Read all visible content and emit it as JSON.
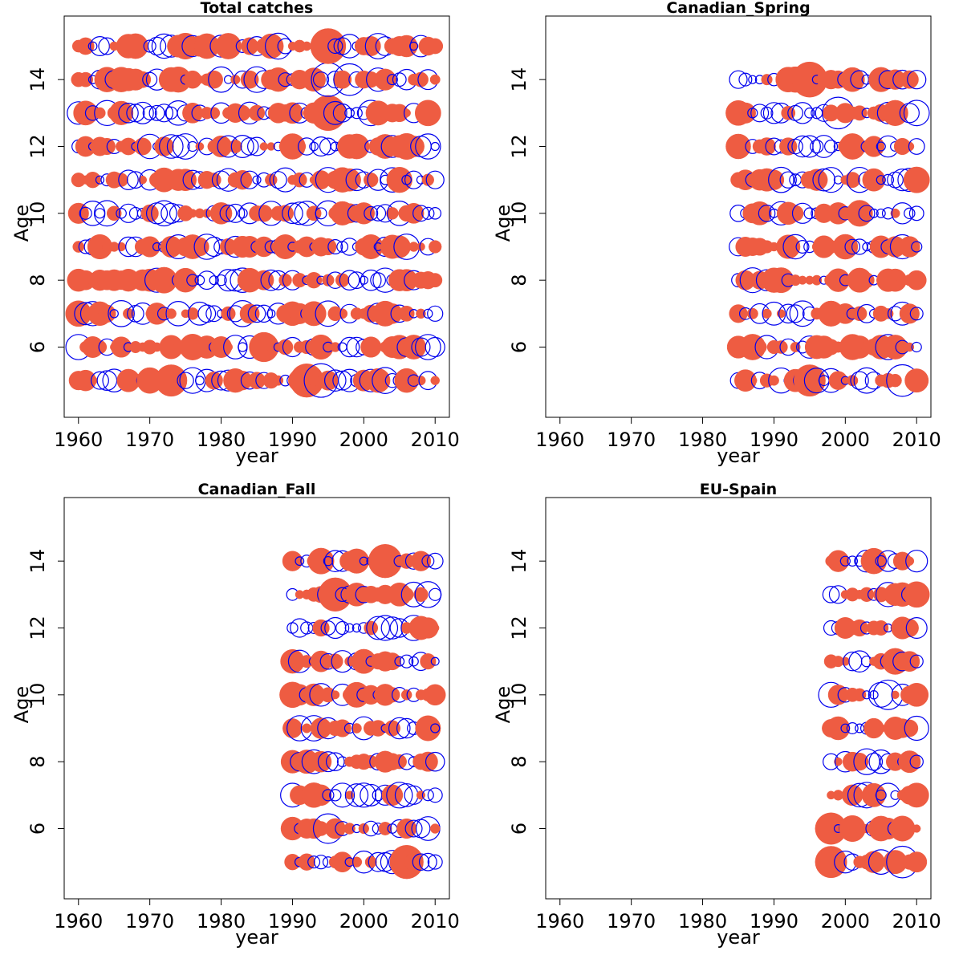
{
  "colors": {
    "positive": "#ee5c42",
    "negative": "#0000ee",
    "frame": "#000000"
  },
  "chart_data": [
    {
      "type": "scatter",
      "title": "Total catches",
      "xlabel": "year",
      "ylabel": "Age",
      "xlim": [
        1958,
        2012
      ],
      "ylim": [
        3.9,
        15.9
      ],
      "x_ticks": [
        "1960",
        "1970",
        "1980",
        "1990",
        "2000",
        "2010"
      ],
      "y_ticks": [
        "6",
        "8",
        "10",
        "12",
        "14"
      ],
      "grid": false,
      "legend": "none",
      "years": [
        1960,
        2010
      ],
      "ages": [
        5,
        15
      ],
      "note": "bubble residuals; filled = positive, open = negative",
      "peaks": [
        {
          "year": 1995,
          "age": 15,
          "value": 1.0
        },
        {
          "year": 1995,
          "age": 13,
          "value": 1.0
        },
        {
          "year": 1995,
          "age": 14,
          "value": -0.9
        },
        {
          "year": 1992,
          "age": 5,
          "value": 0.9
        },
        {
          "year": 1994,
          "age": 5,
          "value": -0.9
        },
        {
          "year": 1973,
          "age": 5,
          "value": 0.8
        },
        {
          "year": 1986,
          "age": 6,
          "value": 0.7
        },
        {
          "year": 1998,
          "age": 14,
          "value": -0.8
        }
      ]
    },
    {
      "type": "scatter",
      "title": "Canadian_Spring",
      "xlabel": "year",
      "ylabel": "Age",
      "xlim": [
        1958,
        2012
      ],
      "ylim": [
        3.9,
        15.9
      ],
      "x_ticks": [
        "1960",
        "1970",
        "1980",
        "1990",
        "2000",
        "2010"
      ],
      "y_ticks": [
        "6",
        "8",
        "10",
        "12",
        "14"
      ],
      "grid": false,
      "legend": "none",
      "years": [
        1985,
        2010
      ],
      "ages": [
        5,
        14
      ],
      "peaks": [
        {
          "year": 1995,
          "age": 14,
          "value": 1.0
        },
        {
          "year": 1999,
          "age": 13,
          "value": -0.8
        },
        {
          "year": 1995,
          "age": 5,
          "value": 0.8
        },
        {
          "year": 2008,
          "age": 5,
          "value": -0.8
        }
      ]
    },
    {
      "type": "scatter",
      "title": "Canadian_Fall",
      "xlabel": "year",
      "ylabel": "Age",
      "xlim": [
        1958,
        2012
      ],
      "ylim": [
        3.9,
        15.9
      ],
      "x_ticks": [
        "1960",
        "1970",
        "1980",
        "1990",
        "2000",
        "2010"
      ],
      "y_ticks": [
        "6",
        "8",
        "10",
        "12",
        "14"
      ],
      "grid": false,
      "legend": "none",
      "years": [
        1990,
        2010
      ],
      "ages": [
        5,
        14
      ],
      "peaks": [
        {
          "year": 2003,
          "age": 14,
          "value": 0.9
        },
        {
          "year": 1996,
          "age": 13,
          "value": 0.9
        },
        {
          "year": 2006,
          "age": 5,
          "value": 0.9
        },
        {
          "year": 1995,
          "age": 6,
          "value": -0.7
        }
      ]
    },
    {
      "type": "scatter",
      "title": "EU-Spain",
      "xlabel": "year",
      "ylabel": "Age",
      "xlim": [
        1958,
        2012
      ],
      "ylim": [
        3.9,
        15.9
      ],
      "x_ticks": [
        "1960",
        "1970",
        "1980",
        "1990",
        "2000",
        "2010"
      ],
      "y_ticks": [
        "6",
        "8",
        "10",
        "12",
        "14"
      ],
      "grid": false,
      "legend": "none",
      "years": [
        1998,
        2010
      ],
      "ages": [
        5,
        14
      ],
      "peaks": [
        {
          "year": 1998,
          "age": 5,
          "value": 0.8
        },
        {
          "year": 1998,
          "age": 6,
          "value": 0.8
        },
        {
          "year": 2008,
          "age": 5,
          "value": -0.8
        },
        {
          "year": 2006,
          "age": 10,
          "value": -0.7
        }
      ]
    }
  ]
}
